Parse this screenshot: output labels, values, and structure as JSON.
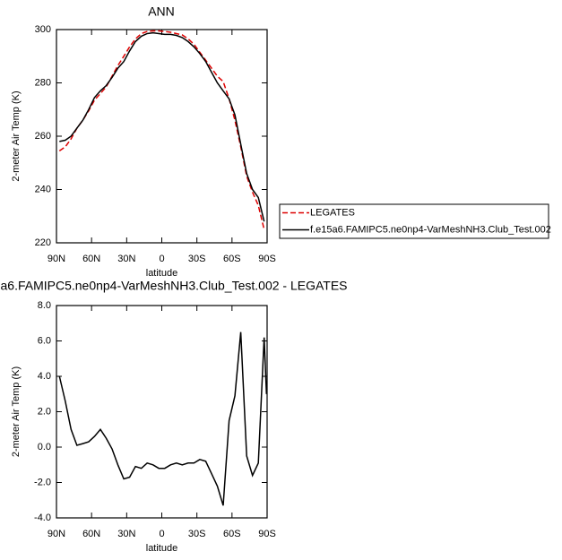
{
  "chart_data": [
    {
      "type": "line",
      "title": "ANN",
      "xlabel": "latitude",
      "ylabel": "2-meter Air Temp (K)",
      "x": [
        87.5,
        82.5,
        77.5,
        72.5,
        67.5,
        62.5,
        57.5,
        52.5,
        47.5,
        42.5,
        37.5,
        32.5,
        27.5,
        22.5,
        17.5,
        12.5,
        7.5,
        2.5,
        -2.5,
        -7.5,
        -12.5,
        -17.5,
        -22.5,
        -27.5,
        -32.5,
        -37.5,
        -42.5,
        -47.5,
        -52.5,
        -57.5,
        -62.5,
        -67.5,
        -72.5,
        -77.5,
        -82.5,
        -87.5
      ],
      "xlim": [
        90,
        -90
      ],
      "xticks": [
        {
          "value": 90,
          "label": "90N"
        },
        {
          "value": 60,
          "label": "60N"
        },
        {
          "value": 30,
          "label": "30N"
        },
        0,
        {
          "value": -30,
          "label": "30S"
        },
        {
          "value": -60,
          "label": "60S"
        },
        {
          "value": -90,
          "label": "90S"
        }
      ],
      "ylim": [
        220,
        300
      ],
      "yticks": [
        220,
        240,
        260,
        280,
        300
      ],
      "legend": "right",
      "series": [
        {
          "name": "LEGATES",
          "color": "#dd0000",
          "dashed": true,
          "values": [
            254.5,
            256,
            259,
            263,
            266,
            269.5,
            273.5,
            276,
            278.5,
            282.5,
            286.5,
            290,
            293.5,
            296.5,
            298.5,
            299.3,
            299.5,
            299.5,
            299.3,
            299,
            298.5,
            298,
            296.5,
            294.5,
            291.5,
            288.5,
            285.5,
            282.5,
            280.5,
            274,
            266,
            256,
            245,
            239,
            234,
            225
          ]
        },
        {
          "name": "f.e15a6.FAMIPC5.ne0np4-VarMeshNH3.Club_Test.002",
          "color": "#000000",
          "dashed": false,
          "values": [
            258,
            258.5,
            260,
            263,
            266,
            270,
            274.5,
            277,
            279,
            282,
            285.5,
            288,
            292,
            295.5,
            297.5,
            298.5,
            298.8,
            298.5,
            298.2,
            298.2,
            297.8,
            297,
            295.5,
            293.5,
            291,
            288,
            284,
            280,
            277,
            274,
            268,
            257,
            246,
            240,
            237,
            228
          ]
        }
      ]
    },
    {
      "type": "line",
      "title": "a6.FAMIPC5.ne0np4-VarMeshNH3.Club_Test.002 - LEGATES",
      "xlabel": "latitude",
      "ylabel": "2-meter Air Temp (K)",
      "x": [
        87.5,
        82.5,
        77.5,
        72.5,
        67.5,
        62.5,
        57.5,
        52.5,
        47.5,
        42.5,
        37.5,
        32.5,
        27.5,
        22.5,
        17.5,
        12.5,
        7.5,
        2.5,
        -2.5,
        -7.5,
        -12.5,
        -17.5,
        -22.5,
        -27.5,
        -32.5,
        -37.5,
        -42.5,
        -47.5,
        -52.5,
        -57.5,
        -62.5,
        -67.5,
        -72.5,
        -77.5,
        -82.5,
        -87.5,
        -89.5
      ],
      "xlim": [
        90,
        -90
      ],
      "xticks": [
        {
          "value": 90,
          "label": "90N"
        },
        {
          "value": 60,
          "label": "60N"
        },
        {
          "value": 30,
          "label": "30N"
        },
        0,
        {
          "value": -30,
          "label": "30S"
        },
        {
          "value": -60,
          "label": "60S"
        },
        {
          "value": -90,
          "label": "90S"
        }
      ],
      "ylim": [
        -4,
        8
      ],
      "yticks": [
        {
          "value": -4,
          "label": "-4.0"
        },
        {
          "value": -2,
          "label": "-2.0"
        },
        {
          "value": 0,
          "label": "0.0"
        },
        {
          "value": 2,
          "label": "2.0"
        },
        {
          "value": 4,
          "label": "4.0"
        },
        {
          "value": 6,
          "label": "6.0"
        },
        {
          "value": 8,
          "label": "8.0"
        }
      ],
      "series": [
        {
          "color": "#000000",
          "dashed": false,
          "values": [
            4.0,
            2.6,
            1.0,
            0.1,
            0.2,
            0.3,
            0.6,
            1.0,
            0.5,
            -0.1,
            -1.0,
            -1.8,
            -1.7,
            -1.1,
            -1.2,
            -0.9,
            -1.0,
            -1.2,
            -1.2,
            -1.0,
            -0.9,
            -1.0,
            -0.9,
            -0.9,
            -0.7,
            -0.8,
            -1.5,
            -2.2,
            -3.3,
            1.5,
            2.9,
            6.5,
            -0.5,
            -1.6,
            -0.9,
            6.2,
            3.0
          ]
        }
      ]
    }
  ]
}
